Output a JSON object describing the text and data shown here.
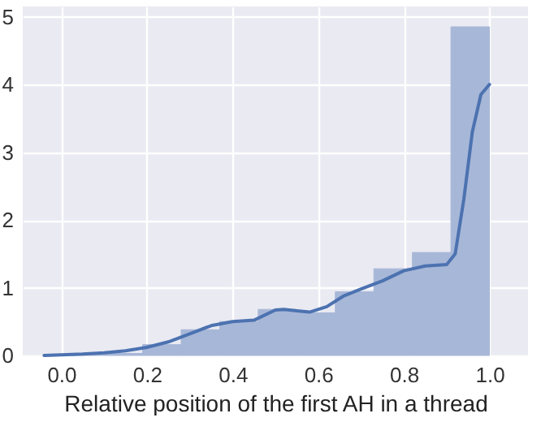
{
  "chart_data": {
    "type": "histogram",
    "xlabel": "Relative position of the first AH in a thread",
    "xlim": [
      -0.09,
      1.09
    ],
    "ylim": [
      0,
      5.15
    ],
    "xticks": [
      {
        "value": 0,
        "label": "0.0"
      },
      {
        "value": 0.2,
        "label": "0.2"
      },
      {
        "value": 0.4,
        "label": "0.4"
      },
      {
        "value": 0.6,
        "label": "0.6"
      },
      {
        "value": 0.8,
        "label": "0.8"
      },
      {
        "value": 1,
        "label": "1.0"
      }
    ],
    "yticks": [
      0,
      1,
      2,
      3,
      4,
      5
    ],
    "grid": true,
    "series": [
      {
        "color": "#a7b7d8",
        "bins": [
          0.01,
          0.1,
          0.19,
          0.28,
          0.37,
          0.46,
          0.55,
          0.64,
          0.73,
          0.82,
          0.91,
          1.0
        ],
        "values": [
          0.01,
          0.03,
          0.16,
          0.38,
          0.5,
          0.68,
          0.63,
          0.94,
          1.28,
          1.52,
          4.85
        ]
      },
      {
        "type": "line",
        "color": "#4c72b0",
        "x": [
          -0.04,
          0.0,
          0.05,
          0.1,
          0.15,
          0.2,
          0.25,
          0.3,
          0.35,
          0.4,
          0.45,
          0.5,
          0.52,
          0.55,
          0.58,
          0.62,
          0.66,
          0.7,
          0.75,
          0.8,
          0.85,
          0.9,
          0.92,
          0.94,
          0.96,
          0.98,
          1.0
        ],
        "values": [
          0,
          0.01,
          0.02,
          0.04,
          0.07,
          0.12,
          0.2,
          0.32,
          0.44,
          0.5,
          0.52,
          0.67,
          0.68,
          0.66,
          0.64,
          0.72,
          0.88,
          0.98,
          1.1,
          1.25,
          1.32,
          1.34,
          1.5,
          2.3,
          3.3,
          3.85,
          4.0
        ]
      }
    ]
  }
}
